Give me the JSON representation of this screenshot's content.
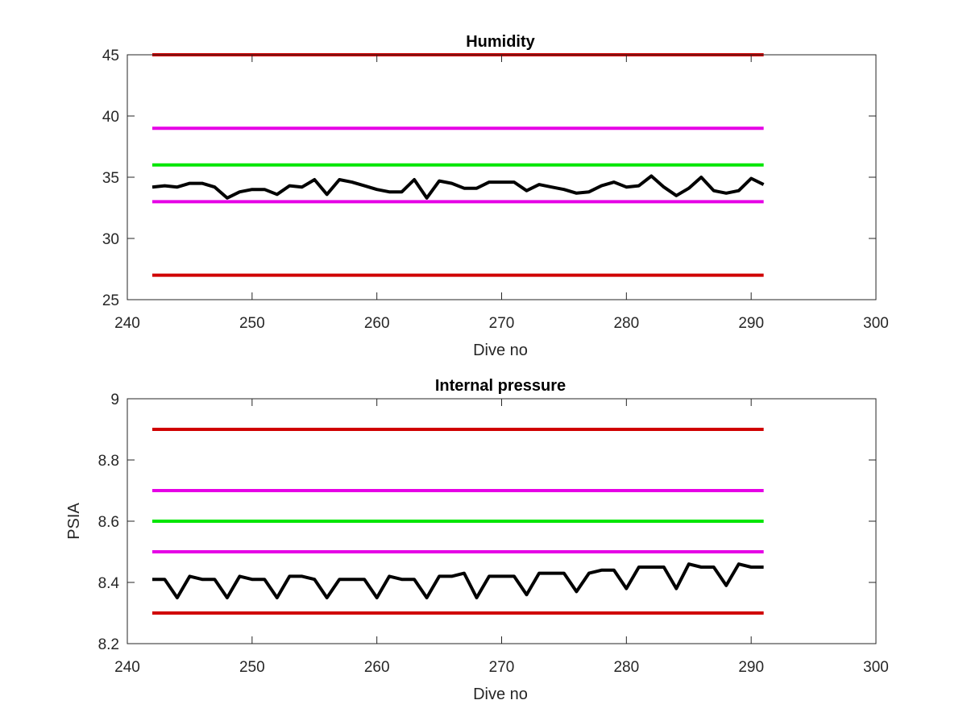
{
  "chart_data": [
    {
      "type": "line",
      "title": "Humidity",
      "xlabel": "Dive no",
      "ylabel": "",
      "xlim": [
        240,
        300
      ],
      "ylim": [
        25,
        45
      ],
      "xticks": [
        240,
        250,
        260,
        270,
        280,
        290,
        300
      ],
      "yticks": [
        25,
        30,
        35,
        40,
        45
      ],
      "grid": false,
      "x": [
        242,
        243,
        244,
        245,
        246,
        247,
        248,
        249,
        250,
        251,
        252,
        253,
        254,
        255,
        256,
        257,
        258,
        259,
        260,
        261,
        262,
        263,
        264,
        265,
        266,
        267,
        268,
        269,
        270,
        271,
        272,
        273,
        274,
        275,
        276,
        277,
        278,
        279,
        280,
        281,
        282,
        283,
        284,
        285,
        286,
        287,
        288,
        289,
        290,
        291
      ],
      "series": [
        {
          "color": "#000000",
          "values": [
            34.2,
            34.3,
            34.2,
            34.5,
            34.5,
            34.2,
            33.3,
            33.8,
            34.0,
            34.0,
            33.6,
            34.3,
            34.2,
            34.8,
            33.6,
            34.8,
            34.6,
            34.3,
            34.0,
            33.8,
            33.8,
            34.8,
            33.3,
            34.7,
            34.5,
            34.1,
            34.1,
            34.6,
            34.6,
            34.6,
            33.9,
            34.4,
            34.2,
            34.0,
            33.7,
            33.8,
            34.3,
            34.6,
            34.2,
            34.3,
            35.1,
            34.2,
            33.5,
            34.1,
            35.0,
            33.9,
            33.7,
            33.9,
            34.9,
            34.4
          ]
        }
      ],
      "hlines": [
        {
          "y": 45,
          "x_from": 242,
          "x_to": 291,
          "color": "#d00000"
        },
        {
          "y": 39,
          "x_from": 242,
          "x_to": 291,
          "color": "#e600e6"
        },
        {
          "y": 36,
          "x_from": 242,
          "x_to": 291,
          "color": "#00e600"
        },
        {
          "y": 33,
          "x_from": 242,
          "x_to": 291,
          "color": "#e600e6"
        },
        {
          "y": 27,
          "x_from": 242,
          "x_to": 291,
          "color": "#d00000"
        }
      ]
    },
    {
      "type": "line",
      "title": "Internal pressure",
      "xlabel": "Dive no",
      "ylabel": "PSIA",
      "xlim": [
        240,
        300
      ],
      "ylim": [
        8.2,
        9
      ],
      "xticks": [
        240,
        250,
        260,
        270,
        280,
        290,
        300
      ],
      "yticks": [
        8.2,
        8.4,
        8.6,
        8.8,
        9
      ],
      "grid": false,
      "x": [
        242,
        243,
        244,
        245,
        246,
        247,
        248,
        249,
        250,
        251,
        252,
        253,
        254,
        255,
        256,
        257,
        258,
        259,
        260,
        261,
        262,
        263,
        264,
        265,
        266,
        267,
        268,
        269,
        270,
        271,
        272,
        273,
        274,
        275,
        276,
        277,
        278,
        279,
        280,
        281,
        282,
        283,
        284,
        285,
        286,
        287,
        288,
        289,
        290,
        291
      ],
      "series": [
        {
          "color": "#000000",
          "values": [
            8.41,
            8.41,
            8.35,
            8.42,
            8.41,
            8.41,
            8.35,
            8.42,
            8.41,
            8.41,
            8.35,
            8.42,
            8.42,
            8.41,
            8.35,
            8.41,
            8.41,
            8.41,
            8.35,
            8.42,
            8.41,
            8.41,
            8.35,
            8.42,
            8.42,
            8.43,
            8.35,
            8.42,
            8.42,
            8.42,
            8.36,
            8.43,
            8.43,
            8.43,
            8.37,
            8.43,
            8.44,
            8.44,
            8.38,
            8.45,
            8.45,
            8.45,
            8.38,
            8.46,
            8.45,
            8.45,
            8.39,
            8.46,
            8.45,
            8.45
          ]
        }
      ],
      "hlines": [
        {
          "y": 8.9,
          "x_from": 242,
          "x_to": 291,
          "color": "#d00000"
        },
        {
          "y": 8.7,
          "x_from": 242,
          "x_to": 291,
          "color": "#e600e6"
        },
        {
          "y": 8.6,
          "x_from": 242,
          "x_to": 291,
          "color": "#00e600"
        },
        {
          "y": 8.5,
          "x_from": 242,
          "x_to": 291,
          "color": "#e600e6"
        },
        {
          "y": 8.3,
          "x_from": 242,
          "x_to": 291,
          "color": "#d00000"
        }
      ]
    }
  ]
}
